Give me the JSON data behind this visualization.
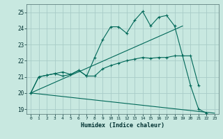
{
  "xlabel": "Humidex (Indice chaleur)",
  "background_color": "#c8e8e0",
  "grid_color": "#a8ccc8",
  "line_color": "#006858",
  "xlim": [
    -0.5,
    23.5
  ],
  "ylim": [
    18.7,
    25.5
  ],
  "yticks": [
    19,
    20,
    21,
    22,
    23,
    24,
    25
  ],
  "xticks": [
    0,
    1,
    2,
    3,
    4,
    5,
    6,
    7,
    8,
    9,
    10,
    11,
    12,
    13,
    14,
    15,
    16,
    17,
    18,
    19,
    20,
    21,
    22,
    23
  ],
  "line1_x": [
    0,
    1,
    2,
    3,
    4,
    5,
    6,
    7,
    8,
    9,
    10,
    11,
    12,
    13,
    14,
    15,
    16,
    17,
    18,
    19,
    20,
    21,
    22,
    23
  ],
  "line1_y": [
    20.0,
    21.0,
    21.1,
    21.2,
    21.3,
    21.15,
    21.4,
    21.05,
    22.2,
    23.3,
    24.1,
    24.1,
    23.7,
    24.5,
    25.05,
    24.15,
    24.7,
    24.8,
    24.15,
    22.3,
    20.45,
    19.0,
    18.75,
    null
  ],
  "line2_x": [
    0,
    1,
    2,
    3,
    4,
    5,
    6,
    7,
    8,
    9,
    10,
    11,
    12,
    13,
    14,
    15,
    16,
    17,
    18,
    19,
    20,
    21,
    22,
    23
  ],
  "line2_y": [
    20.0,
    21.0,
    21.1,
    21.2,
    21.05,
    21.15,
    21.4,
    21.05,
    21.05,
    21.5,
    21.7,
    21.85,
    22.0,
    22.1,
    22.2,
    22.15,
    22.2,
    22.2,
    22.3,
    22.3,
    22.3,
    20.45,
    null,
    null
  ],
  "line3_x": [
    0,
    19
  ],
  "line3_y": [
    20.0,
    24.15
  ],
  "line4_x": [
    0,
    23
  ],
  "line4_y": [
    20.0,
    18.75
  ]
}
